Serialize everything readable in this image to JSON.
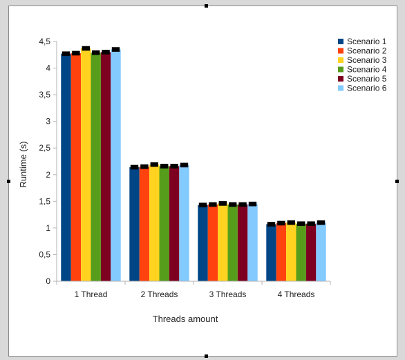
{
  "chart_data": {
    "type": "bar",
    "title": "",
    "xlabel": "Threads amount",
    "ylabel": "Runtime (s)",
    "ylim": [
      0,
      4.5
    ],
    "yticks": [
      "0",
      "0,5",
      "1",
      "1,5",
      "2",
      "2,5",
      "3",
      "3,5",
      "4",
      "4,5"
    ],
    "categories": [
      "1 Thread",
      "2 Threads",
      "3 Threads",
      "4 Threads"
    ],
    "series": [
      {
        "name": "Scenario 1",
        "color": "#004586",
        "values": [
          4.27,
          2.14,
          1.43,
          1.07
        ],
        "errors": [
          0.03,
          0.03,
          0.03,
          0.03
        ]
      },
      {
        "name": "Scenario 2",
        "color": "#ff420e",
        "values": [
          4.28,
          2.15,
          1.44,
          1.09
        ],
        "errors": [
          0.03,
          0.03,
          0.03,
          0.03
        ]
      },
      {
        "name": "Scenario 3",
        "color": "#ffd320",
        "values": [
          4.37,
          2.19,
          1.46,
          1.1
        ],
        "errors": [
          0.03,
          0.03,
          0.03,
          0.03
        ]
      },
      {
        "name": "Scenario 4",
        "color": "#579d1c",
        "values": [
          4.29,
          2.16,
          1.44,
          1.08
        ],
        "errors": [
          0.03,
          0.03,
          0.03,
          0.03
        ]
      },
      {
        "name": "Scenario 5",
        "color": "#7e0021",
        "values": [
          4.3,
          2.16,
          1.44,
          1.08
        ],
        "errors": [
          0.03,
          0.03,
          0.03,
          0.03
        ]
      },
      {
        "name": "Scenario 6",
        "color": "#83caff",
        "values": [
          4.35,
          2.18,
          1.45,
          1.1
        ],
        "errors": [
          0.03,
          0.03,
          0.03,
          0.03
        ]
      }
    ],
    "error_bar_color": "#000000",
    "legend_position": "right",
    "grid": false
  }
}
